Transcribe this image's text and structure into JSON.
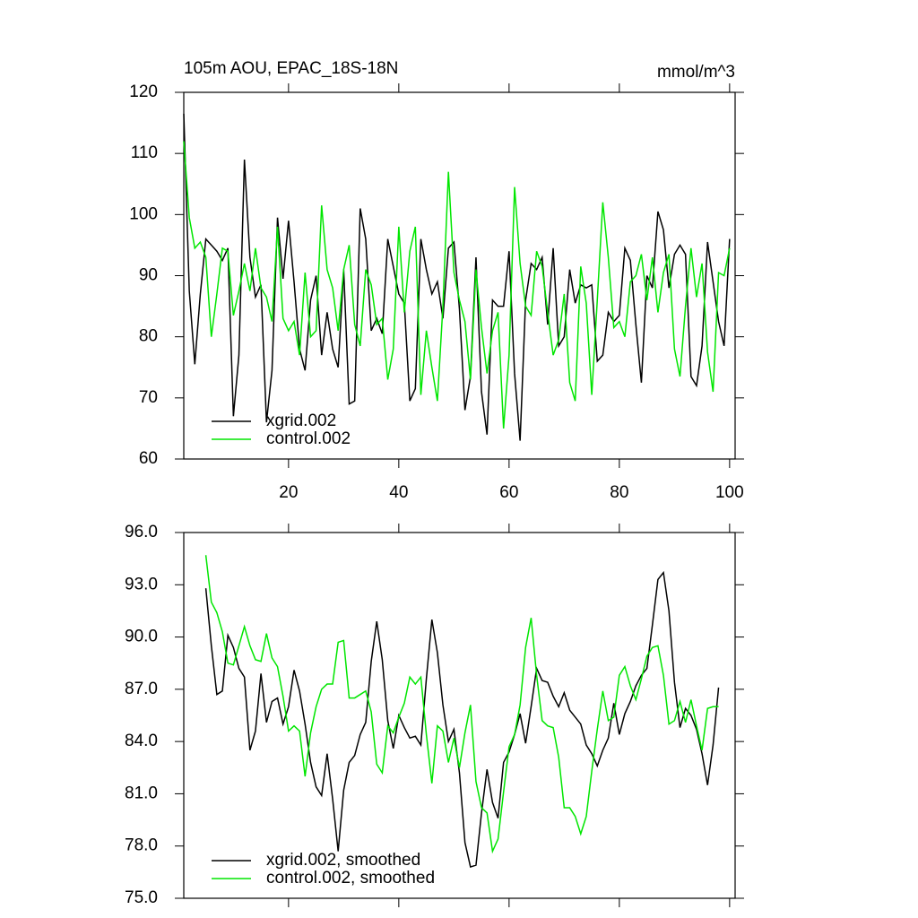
{
  "chart_data": [
    {
      "type": "line",
      "title": "105m AOU, EPAC_18S-18N",
      "units": "mmol/m^3",
      "x": [
        1,
        2,
        3,
        4,
        5,
        6,
        7,
        8,
        9,
        10,
        11,
        12,
        13,
        14,
        15,
        16,
        17,
        18,
        19,
        20,
        21,
        22,
        23,
        24,
        25,
        26,
        27,
        28,
        29,
        30,
        31,
        32,
        33,
        34,
        35,
        36,
        37,
        38,
        39,
        40,
        41,
        42,
        43,
        44,
        45,
        46,
        47,
        48,
        49,
        50,
        51,
        52,
        53,
        54,
        55,
        56,
        57,
        58,
        59,
        60,
        61,
        62,
        63,
        64,
        65,
        66,
        67,
        68,
        69,
        70,
        71,
        72,
        73,
        74,
        75,
        76,
        77,
        78,
        79,
        80,
        81,
        82,
        83,
        84,
        85,
        86,
        87,
        88,
        89,
        90,
        91,
        92,
        93,
        94,
        95,
        96,
        97,
        98,
        99,
        100
      ],
      "series": [
        {
          "name": "xgrid.002",
          "color": "#000000",
          "values": [
            116.5,
            87.5,
            75.5,
            87,
            96,
            95,
            94,
            92.5,
            94.5,
            67,
            77,
            109,
            93,
            86.5,
            88.5,
            66,
            74.5,
            99.5,
            89.5,
            99,
            89,
            78,
            74.5,
            86,
            90,
            77,
            84,
            78,
            75,
            91,
            69,
            69.5,
            101,
            96,
            81,
            83,
            80.5,
            96,
            91.5,
            87,
            85.5,
            69.5,
            71.5,
            96,
            91,
            87,
            89,
            83,
            94.5,
            95.5,
            84.5,
            68,
            73.5,
            93,
            71,
            64,
            86,
            85,
            85,
            94,
            74,
            63,
            86,
            92,
            91,
            93,
            82,
            94.5,
            78.5,
            80,
            91,
            85.5,
            88.5,
            88,
            88.5,
            76,
            77,
            84,
            82.5,
            83.5,
            94.5,
            92.5,
            82,
            72.5,
            90,
            88,
            100.5,
            97.5,
            88,
            93.5,
            95,
            93.5,
            73.5,
            72,
            78.5,
            95.5,
            89,
            82.5,
            78.5,
            96
          ]
        },
        {
          "name": "control.002",
          "color": "#00e600",
          "values": [
            112,
            99.5,
            94.5,
            95.5,
            93,
            80,
            87,
            94.5,
            94,
            83.5,
            87.5,
            92,
            87.5,
            94.5,
            88,
            86.5,
            82.5,
            98,
            83,
            81,
            82.5,
            77,
            90.5,
            80,
            81,
            101.5,
            91,
            88,
            81,
            91,
            95,
            82,
            78.5,
            91,
            88.5,
            82,
            83,
            73,
            78,
            98,
            84,
            94,
            98,
            70.5,
            81,
            75,
            69.5,
            85,
            107,
            90.5,
            86,
            82.5,
            73,
            91,
            81.5,
            74,
            81,
            84,
            65,
            77,
            104.5,
            92,
            85,
            83.5,
            94,
            91.5,
            84,
            77,
            79.5,
            87,
            72.5,
            69.5,
            91.5,
            85.5,
            70.5,
            86,
            102,
            93,
            81.5,
            82.5,
            80,
            89,
            90,
            93.5,
            86,
            93,
            84,
            90.5,
            93.5,
            78,
            73.5,
            85,
            94.5,
            86.5,
            92,
            77.5,
            71,
            90.5,
            90,
            94.5
          ]
        }
      ],
      "xlim": [
        1,
        101
      ],
      "xticks": [
        20,
        40,
        60,
        80,
        100
      ],
      "show_xtick_labels": true,
      "ylim": [
        60,
        120
      ],
      "yticks": [
        60,
        70,
        80,
        90,
        100,
        110,
        120
      ],
      "legend": "lower left"
    },
    {
      "type": "line",
      "x": [
        5,
        6,
        7,
        8,
        9,
        10,
        11,
        12,
        13,
        14,
        15,
        16,
        17,
        18,
        19,
        20,
        21,
        22,
        23,
        24,
        25,
        26,
        27,
        28,
        29,
        30,
        31,
        32,
        33,
        34,
        35,
        36,
        37,
        38,
        39,
        40,
        41,
        42,
        43,
        44,
        45,
        46,
        47,
        48,
        49,
        50,
        51,
        52,
        53,
        54,
        55,
        56,
        57,
        58,
        59,
        60,
        61,
        62,
        63,
        64,
        65,
        66,
        67,
        68,
        69,
        70,
        71,
        72,
        73,
        74,
        75,
        76,
        77,
        78,
        79,
        80,
        81,
        82,
        83,
        84,
        85,
        86,
        87,
        88,
        89,
        90,
        91,
        92,
        93,
        94,
        95,
        96,
        97,
        98
      ],
      "series": [
        {
          "name": "xgrid.002, smoothed",
          "color": "#000000",
          "values": [
            92.8,
            89.5,
            86.7,
            86.9,
            90.1,
            89.4,
            88.2,
            87.7,
            83.5,
            84.6,
            87.9,
            85.1,
            86.3,
            86.5,
            85,
            86,
            88.1,
            86.9,
            85,
            82.8,
            81.4,
            80.9,
            83.3,
            80.7,
            77.7,
            81.2,
            82.8,
            83.2,
            84.4,
            85.1,
            88.6,
            90.9,
            88.7,
            85.2,
            83.6,
            85.5,
            84.8,
            84.2,
            84.3,
            83.8,
            87.6,
            91,
            89.1,
            86.1,
            84,
            84.7,
            82.2,
            78.2,
            76.8,
            76.9,
            79.9,
            82.4,
            80.5,
            79.6,
            82.8,
            83.4,
            84.4,
            85.6,
            83.9,
            86,
            88.2,
            87.5,
            87.4,
            86.6,
            86,
            86.8,
            85.8,
            85.4,
            85,
            83.8,
            83.3,
            82.6,
            83.5,
            84.2,
            86.2,
            84.4,
            85.6,
            86.3,
            87.2,
            87.8,
            88.2,
            90.7,
            93.3,
            93.7,
            91.5,
            87.4,
            84.8,
            85.9,
            85.5,
            84.7,
            83.3,
            81.5,
            83.8,
            87.1
          ]
        },
        {
          "name": "control.002, smoothed",
          "color": "#00e600",
          "values": [
            94.7,
            92,
            91.4,
            90.3,
            88.5,
            88.4,
            89.5,
            90.6,
            89.5,
            88.7,
            88.6,
            90.2,
            88.8,
            88.3,
            86.6,
            84.6,
            84.9,
            84.6,
            82,
            84.5,
            86,
            87,
            87.3,
            87.3,
            89.7,
            89.8,
            86.5,
            86.5,
            86.7,
            86.9,
            85.7,
            82.7,
            82.2,
            84.9,
            84.5,
            85.4,
            86.2,
            87.7,
            87.3,
            87.7,
            84.4,
            81.6,
            84.9,
            84.6,
            82.8,
            84.2,
            82.5,
            84.5,
            86.1,
            81.7,
            80.2,
            79.9,
            77.7,
            78.4,
            81.1,
            83.7,
            84.4,
            86.1,
            89.4,
            91.1,
            87.8,
            85.2,
            84.9,
            84.8,
            83.1,
            80.2,
            80.2,
            79.7,
            78.7,
            79.7,
            82.3,
            84.7,
            86.9,
            85.2,
            85.4,
            87.8,
            88.3,
            87.2,
            86.4,
            87.6,
            88.9,
            89.4,
            89.5,
            87.8,
            85,
            85.2,
            86.3,
            85.1,
            86.4,
            84.9,
            83.5,
            85.9,
            86,
            86
          ]
        }
      ],
      "xlim": [
        1,
        101
      ],
      "xticks": [
        20,
        40,
        60,
        80,
        100
      ],
      "show_xtick_labels": false,
      "ylim": [
        75,
        96
      ],
      "yticks": [
        {
          "value": 75,
          "label": "75.0"
        },
        {
          "value": 78,
          "label": "78.0"
        },
        {
          "value": 81,
          "label": "81.0"
        },
        {
          "value": 84,
          "label": "84.0"
        },
        {
          "value": 87,
          "label": "87.0"
        },
        {
          "value": 90,
          "label": "90.0"
        },
        {
          "value": 93,
          "label": "93.0"
        },
        {
          "value": 96,
          "label": "96.0"
        }
      ],
      "legend": "lower left"
    }
  ]
}
